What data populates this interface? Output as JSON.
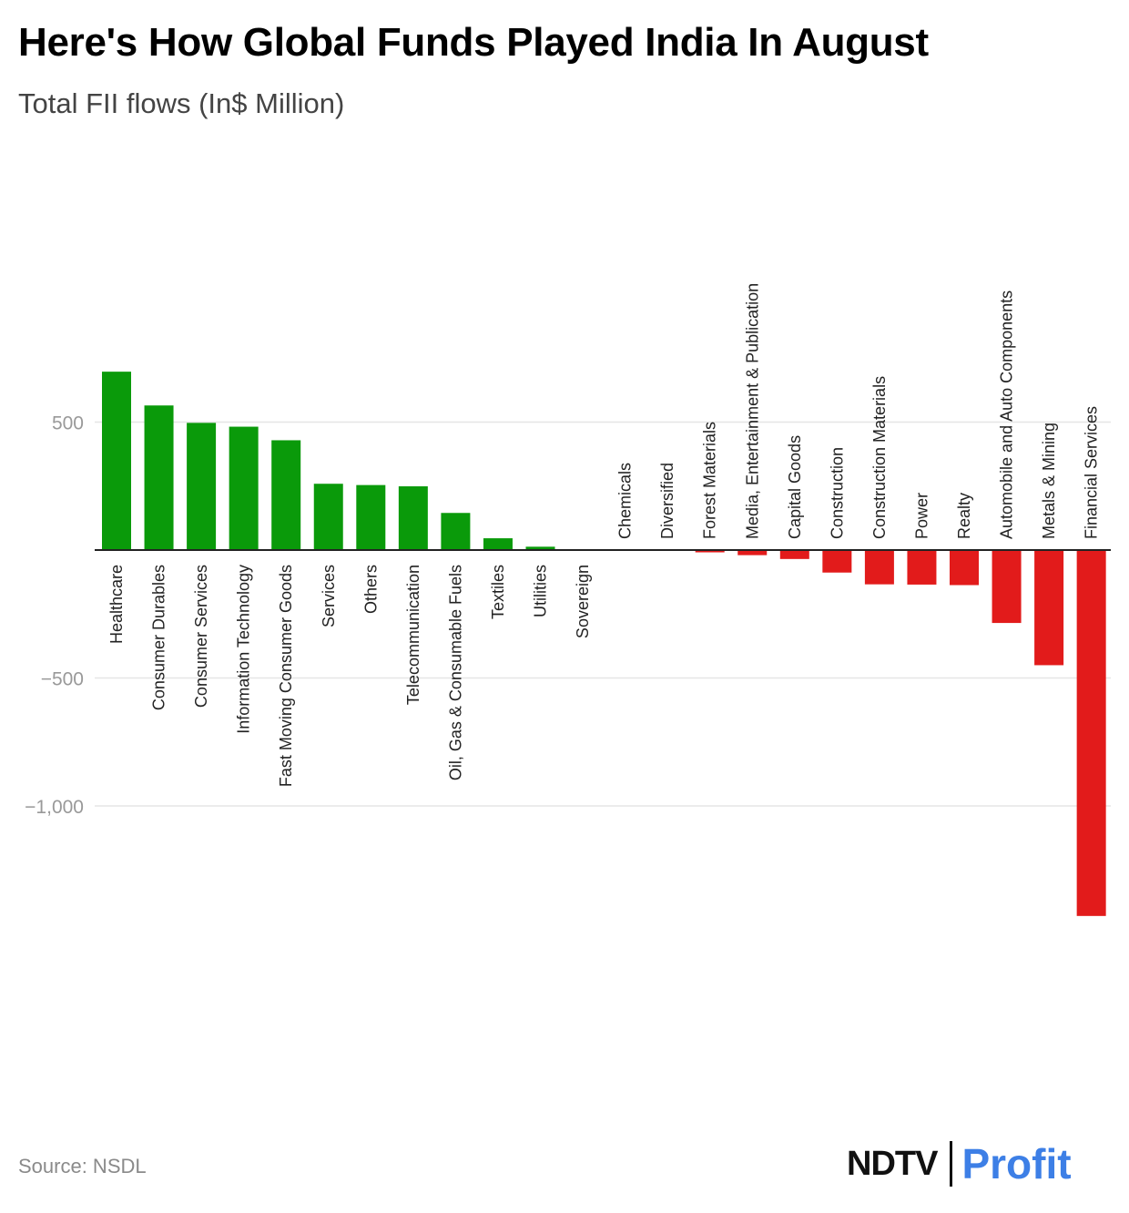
{
  "header": {
    "title": "Here's How Global Funds Played India In August",
    "subtitle": "Total FII flows (In$ Million)"
  },
  "footer": {
    "source": "Source: NSDL",
    "brand_left": "NDTV",
    "brand_right": "Profit"
  },
  "colors": {
    "positive": "#0a9a0a",
    "negative": "#e21b1b",
    "grid": "#e6e6e6",
    "axis": "#222222",
    "tick_label": "#999999"
  },
  "chart_data": {
    "type": "bar",
    "ylim": [
      -1430,
      1430
    ],
    "yticks": [
      500,
      -500,
      -1000
    ],
    "ytick_labels": [
      "500",
      "−500",
      "−1,000"
    ],
    "grid": true,
    "categories": [
      "Healthcare",
      "Consumer Durables",
      "Consumer Services",
      "Information Technology",
      "Fast Moving Consumer Goods",
      "Services",
      "Others",
      "Telecommunication",
      "Oil, Gas & Consumable Fuels",
      "Textiles",
      "Utilities",
      "Sovereign",
      "Chemicals",
      "Diversified",
      "Forest Materials",
      "Media, Entertainment & Publication",
      "Capital Goods",
      "Construction",
      "Construction Materials",
      "Power",
      "Realty",
      "Automobile and Auto Components",
      "Metals & Mining",
      "Financial Services"
    ],
    "values": [
      697,
      565,
      497,
      482,
      429,
      259,
      254,
      249,
      145,
      46,
      13,
      0,
      0,
      0,
      -9,
      -20,
      -35,
      -88,
      -134,
      -135,
      -137,
      -285,
      -450,
      -1430
    ]
  }
}
